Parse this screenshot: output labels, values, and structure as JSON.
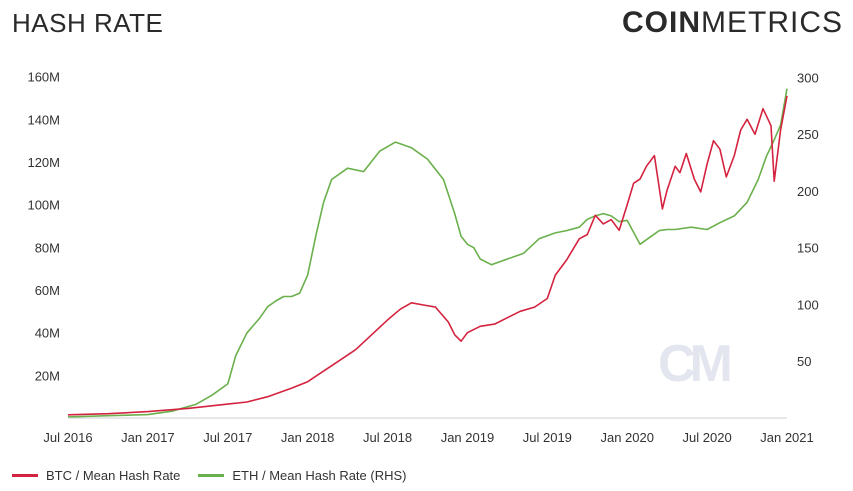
{
  "header": {
    "title": "HASH RATE"
  },
  "logo": {
    "part1": "COIN",
    "part2": "METRICS"
  },
  "watermark": "CM",
  "chart_data": {
    "type": "line",
    "title": "HASH RATE",
    "x_ticks": [
      "Jul 2016",
      "Jan 2017",
      "Jul 2017",
      "Jan 2018",
      "Jul 2018",
      "Jan 2019",
      "Jul 2019",
      "Jan 2020",
      "Jul 2020",
      "Jan 2021"
    ],
    "y_left_ticks": [
      "20M",
      "40M",
      "60M",
      "80M",
      "100M",
      "120M",
      "140M",
      "160M"
    ],
    "y_right_ticks": [
      "50",
      "100",
      "150",
      "200",
      "250",
      "300"
    ],
    "ylim_left": [
      0,
      165
    ],
    "ylim_right": [
      0,
      310
    ],
    "colors": {
      "btc": "#d4233f",
      "eth": "#6ab04c"
    },
    "series": [
      {
        "name": "BTC / Mean Hash Rate",
        "axis": "left",
        "x": [
          2016.5,
          2016.75,
          2017.0,
          2017.25,
          2017.5,
          2017.62,
          2017.75,
          2017.9,
          2018.0,
          2018.1,
          2018.2,
          2018.3,
          2018.4,
          2018.5,
          2018.58,
          2018.65,
          2018.72,
          2018.8,
          2018.88,
          2018.92,
          2018.96,
          2019.0,
          2019.08,
          2019.17,
          2019.25,
          2019.33,
          2019.42,
          2019.5,
          2019.55,
          2019.62,
          2019.7,
          2019.75,
          2019.8,
          2019.85,
          2019.9,
          2019.95,
          2020.0,
          2020.04,
          2020.08,
          2020.12,
          2020.17,
          2020.22,
          2020.25,
          2020.3,
          2020.33,
          2020.37,
          2020.42,
          2020.46,
          2020.5,
          2020.54,
          2020.58,
          2020.62,
          2020.67,
          2020.71,
          2020.75,
          2020.8,
          2020.85,
          2020.9,
          2020.92,
          2020.96,
          2021.0
        ],
        "values": [
          1.5,
          2.0,
          3.0,
          4.5,
          6.5,
          7.5,
          10.0,
          14.0,
          17.0,
          22.0,
          27.0,
          32.0,
          39.0,
          46.0,
          51.0,
          54.0,
          53.0,
          52.0,
          45.0,
          39.0,
          36.0,
          40.0,
          43.0,
          44.0,
          47.0,
          50.0,
          52.0,
          56.0,
          67.0,
          74.0,
          84.0,
          86.0,
          95.0,
          91.0,
          93.0,
          88.0,
          100.0,
          110.0,
          112.0,
          118.0,
          123.0,
          98.0,
          107.0,
          118.0,
          115.0,
          124.0,
          112.0,
          106.0,
          119.0,
          130.0,
          126.0,
          113.0,
          123.0,
          135.0,
          140.0,
          133.0,
          145.0,
          137.0,
          111.0,
          135.0,
          151.0
        ]
      },
      {
        "name": "ETH / Mean Hash Rate (RHS)",
        "axis": "right",
        "x": [
          2016.5,
          2016.75,
          2017.0,
          2017.15,
          2017.3,
          2017.4,
          2017.5,
          2017.55,
          2017.62,
          2017.7,
          2017.75,
          2017.8,
          2017.85,
          2017.9,
          2017.95,
          2018.0,
          2018.05,
          2018.1,
          2018.15,
          2018.25,
          2018.35,
          2018.45,
          2018.55,
          2018.65,
          2018.75,
          2018.85,
          2018.92,
          2018.96,
          2019.0,
          2019.04,
          2019.08,
          2019.15,
          2019.25,
          2019.35,
          2019.45,
          2019.55,
          2019.62,
          2019.7,
          2019.75,
          2019.8,
          2019.85,
          2019.9,
          2019.95,
          2020.0,
          2020.08,
          2020.15,
          2020.2,
          2020.25,
          2020.3,
          2020.4,
          2020.5,
          2020.58,
          2020.67,
          2020.75,
          2020.82,
          2020.87,
          2020.92,
          2020.96,
          2021.0
        ],
        "values": [
          1.0,
          2.0,
          3.0,
          6.0,
          12.0,
          20.0,
          30.0,
          55.0,
          75.0,
          88.0,
          98.0,
          103.0,
          107.0,
          107.0,
          110.0,
          126.0,
          160.0,
          190.0,
          210.0,
          220.0,
          217.0,
          235.0,
          243.0,
          238.0,
          228.0,
          210.0,
          180.0,
          160.0,
          153.0,
          150.0,
          140.0,
          135.0,
          140.0,
          145.0,
          158.0,
          163.0,
          165.0,
          168.0,
          175.0,
          178.0,
          180.0,
          178.0,
          173.0,
          174.0,
          153.0,
          160.0,
          165.0,
          166.0,
          166.0,
          168.0,
          166.0,
          172.0,
          178.0,
          190.0,
          210.0,
          230.0,
          245.0,
          258.0,
          290.0
        ]
      }
    ]
  },
  "legend": [
    {
      "label": "BTC / Mean Hash Rate"
    },
    {
      "label": "ETH / Mean Hash Rate (RHS)"
    }
  ]
}
